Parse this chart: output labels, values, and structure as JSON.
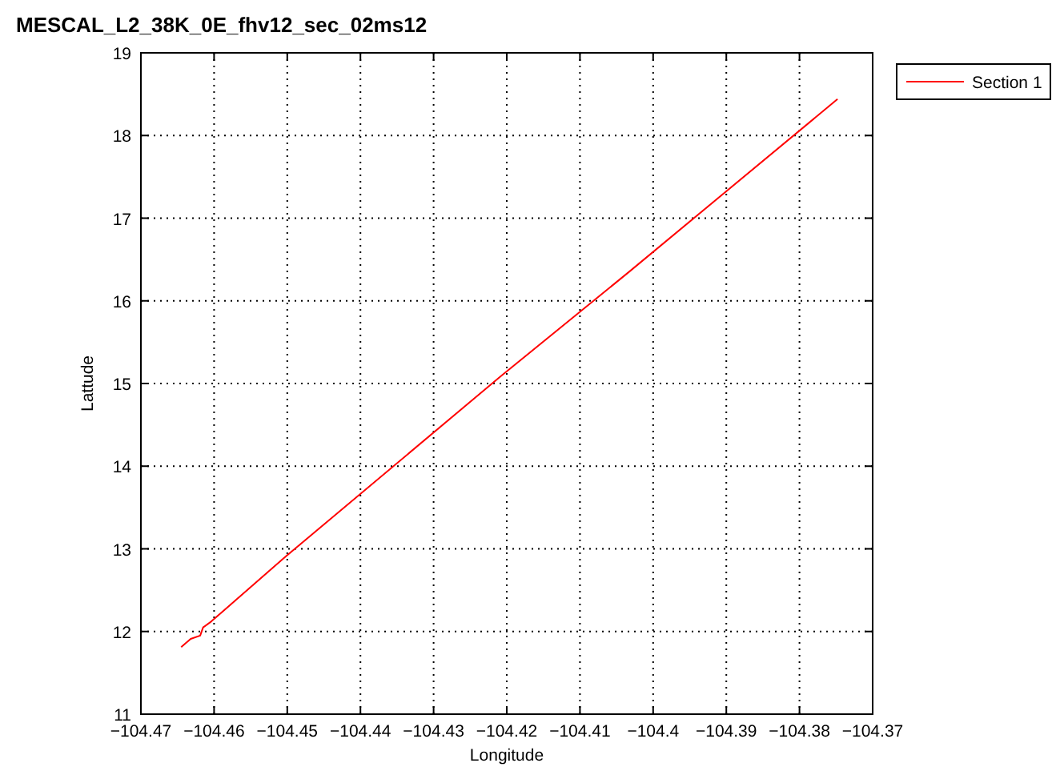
{
  "chart_data": {
    "type": "line",
    "title": "MESCAL_L2_38K_0E_fhv12_sec_02ms12",
    "xlabel": "Longitude",
    "ylabel": "Lattude",
    "xlim": [
      -104.47,
      -104.37
    ],
    "xticks": [
      -104.47,
      -104.46,
      -104.45,
      -104.44,
      -104.43,
      -104.42,
      -104.41,
      -104.4,
      -104.39,
      -104.38,
      -104.37
    ],
    "ylim": [
      11,
      19
    ],
    "yticks": [
      11,
      12,
      13,
      14,
      15,
      16,
      17,
      18,
      19
    ],
    "grid": true,
    "legend": "right",
    "series": [
      {
        "name": "Section 1",
        "color": "#ff0000",
        "x": [
          -104.4645,
          -104.4632,
          -104.4619,
          -104.4615,
          -104.4604,
          -104.4503,
          -104.4208,
          -104.4033,
          -104.3748
        ],
        "values": [
          11.81,
          11.91,
          11.95,
          12.05,
          12.12,
          12.9,
          15.09,
          16.35,
          18.44
        ]
      }
    ]
  }
}
